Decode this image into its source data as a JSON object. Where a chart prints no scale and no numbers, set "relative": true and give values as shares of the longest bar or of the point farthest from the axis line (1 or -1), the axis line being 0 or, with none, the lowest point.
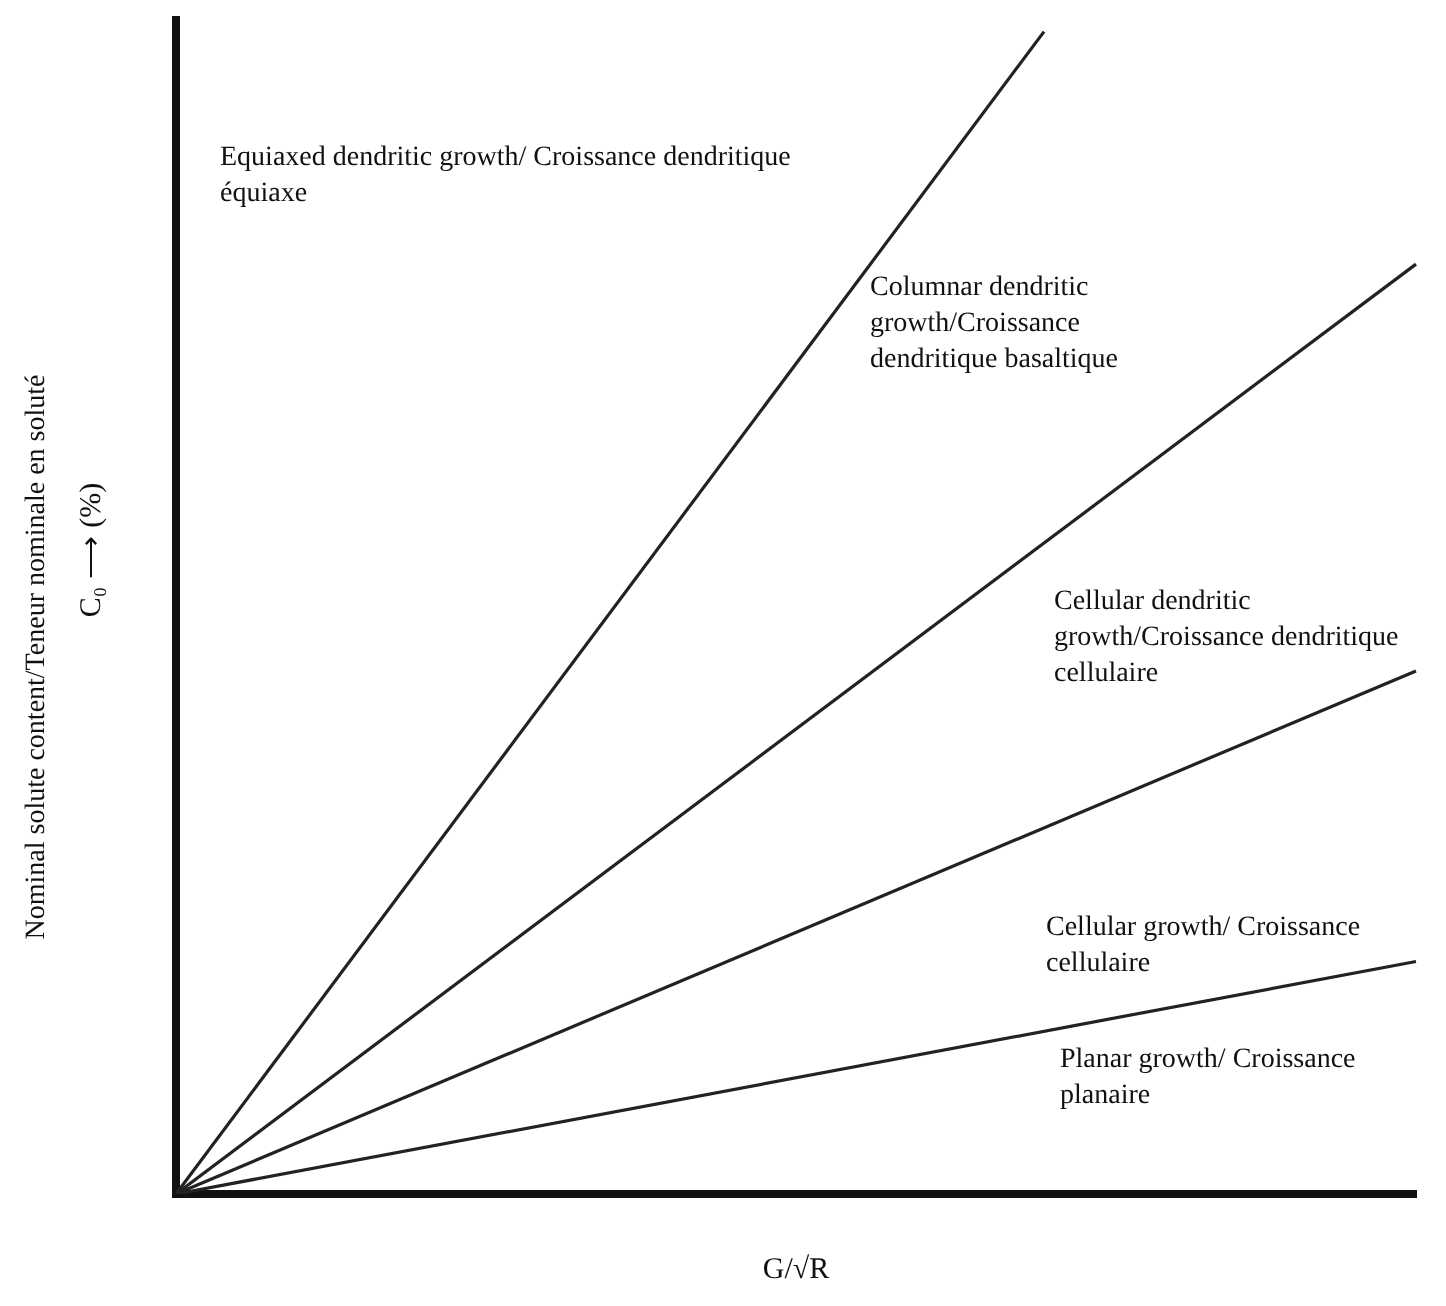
{
  "chart_data": {
    "type": "line",
    "relative": true,
    "xlabel": "G/√R",
    "ylabel": "Nominal solute content/Teneur nominale en soluté",
    "annotations": [
      "C₀ ⟶ (%)",
      "Equiaxed dendritic growth/ Croissance dendritique équiaxe",
      "Columnar dendritic growth/Croissance dendritique basaltique",
      "Cellular dendritic growth/Croissance dendritique cellulaire",
      "Cellular growth/ Croissance cellulaire",
      "Planar growth/ Croissance planaire"
    ],
    "categories": [
      null,
      null,
      null,
      null,
      null,
      null,
      null,
      null,
      null,
      null,
      null,
      null,
      null,
      null,
      null,
      null,
      null,
      null,
      null,
      null,
      null,
      null,
      null,
      null,
      null,
      null,
      null,
      null,
      null,
      null,
      null
    ],
    "grid": false,
    "legend": false,
    "marker": "none",
    "line_style": "solid",
    "series": [
      {
        "color": "#222222",
        "values": [
          0,
          null,
          null,
          null,
          null,
          null,
          null,
          null,
          null,
          null,
          null,
          null,
          null,
          null,
          null,
          null,
          null,
          null,
          null,
          null,
          null,
          1,
          null,
          null,
          null,
          null,
          null,
          null,
          null,
          null,
          null
        ]
      },
      {
        "color": "#222222",
        "values": [
          0,
          null,
          null,
          null,
          null,
          null,
          null,
          null,
          null,
          null,
          null,
          null,
          null,
          null,
          null,
          null,
          null,
          null,
          null,
          null,
          null,
          null,
          null,
          null,
          null,
          null,
          null,
          null,
          null,
          null,
          0.8
        ]
      },
      {
        "color": "#222222",
        "values": [
          0,
          null,
          null,
          null,
          null,
          null,
          null,
          null,
          null,
          null,
          null,
          null,
          null,
          null,
          null,
          null,
          null,
          null,
          null,
          null,
          null,
          null,
          null,
          null,
          null,
          null,
          null,
          null,
          null,
          null,
          0.45
        ]
      },
      {
        "color": "#222222",
        "values": [
          0,
          null,
          null,
          null,
          null,
          null,
          null,
          null,
          null,
          null,
          null,
          null,
          null,
          null,
          null,
          null,
          null,
          null,
          null,
          null,
          null,
          null,
          null,
          null,
          null,
          null,
          null,
          null,
          null,
          null,
          0.2
        ]
      }
    ]
  }
}
